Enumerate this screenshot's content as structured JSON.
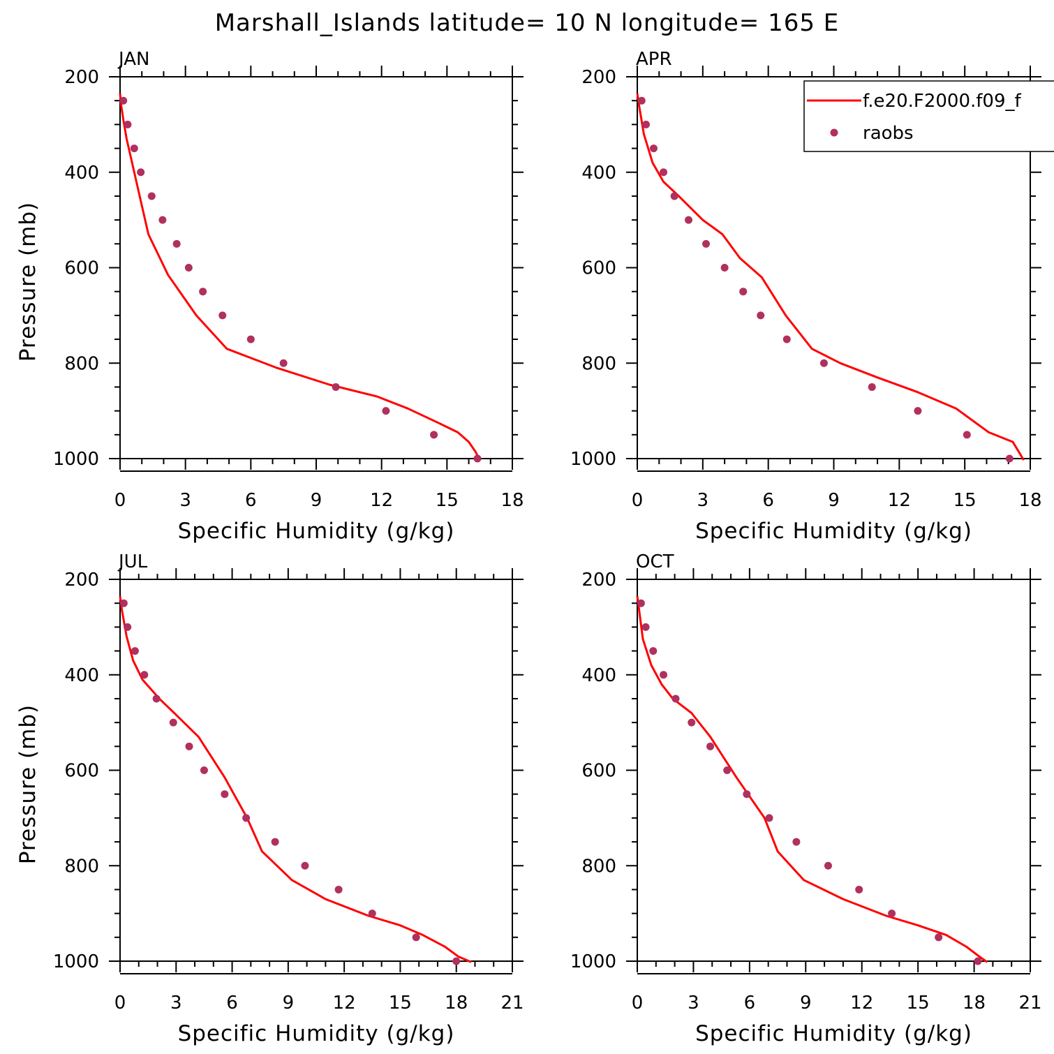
{
  "title": "Marshall_Islands  latitude= 10 N longitude= 165 E",
  "colors": {
    "model": "#ff0000",
    "obs": "#b03060"
  },
  "legend": {
    "model_label": "f.e20.F2000.f09_f",
    "obs_label": "raobs"
  },
  "chart_data": [
    {
      "type": "line",
      "panel": "JAN",
      "xlabel": "Specific Humidity (g/kg)",
      "ylabel": "Pressure (mb)",
      "xlim": [
        0,
        18
      ],
      "ylim": [
        200,
        1000
      ],
      "y_inverted": true,
      "xticks": [
        0,
        3,
        6,
        9,
        12,
        15,
        18
      ],
      "yticks": [
        200,
        400,
        600,
        800,
        1000
      ],
      "series": [
        {
          "name": "f.e20.F2000.f09_f",
          "style": "line",
          "x": [
            0,
            0.05,
            0.15,
            0.3,
            0.55,
            0.9,
            1.3,
            2.2,
            3.5,
            4.9,
            7.2,
            9.6,
            11.8,
            13.2,
            14.6,
            15.5,
            16.0,
            16.3,
            16.5
          ],
          "y": [
            235,
            260,
            290,
            330,
            380,
            450,
            530,
            615,
            700,
            770,
            810,
            845,
            870,
            895,
            925,
            945,
            965,
            985,
            1002
          ]
        },
        {
          "name": "raobs",
          "style": "scatter",
          "x": [
            0.15,
            0.35,
            0.65,
            0.95,
            1.45,
            1.95,
            2.6,
            3.15,
            3.8,
            4.7,
            6.0,
            7.5,
            9.9,
            12.2,
            14.4,
            16.4
          ],
          "y": [
            250,
            300,
            350,
            400,
            450,
            500,
            550,
            600,
            650,
            700,
            750,
            800,
            850,
            900,
            950,
            1000
          ]
        }
      ]
    },
    {
      "type": "line",
      "panel": "APR",
      "xlabel": "Specific Humidity (g/kg)",
      "ylabel": "",
      "xlim": [
        0,
        18
      ],
      "ylim": [
        200,
        1000
      ],
      "y_inverted": true,
      "xticks": [
        0,
        3,
        6,
        9,
        12,
        15,
        18
      ],
      "yticks": [
        200,
        400,
        600,
        800,
        1000
      ],
      "series": [
        {
          "name": "f.e20.F2000.f09_f",
          "style": "line",
          "x": [
            0,
            0.1,
            0.3,
            0.7,
            1.2,
            1.9,
            3.0,
            3.9,
            4.7,
            5.7,
            6.8,
            8.0,
            9.3,
            11.0,
            12.8,
            14.6,
            16.1,
            17.2,
            17.7
          ],
          "y": [
            235,
            265,
            320,
            380,
            420,
            450,
            500,
            530,
            580,
            620,
            700,
            770,
            800,
            830,
            860,
            895,
            945,
            965,
            1003
          ]
        },
        {
          "name": "raobs",
          "style": "scatter",
          "x": [
            0.2,
            0.4,
            0.75,
            1.2,
            1.7,
            2.35,
            3.15,
            4.0,
            4.85,
            5.65,
            6.85,
            8.55,
            10.75,
            12.85,
            15.1,
            17.05
          ],
          "y": [
            250,
            300,
            350,
            400,
            450,
            500,
            550,
            600,
            650,
            700,
            750,
            800,
            850,
            900,
            950,
            1000
          ]
        }
      ]
    },
    {
      "type": "line",
      "panel": "JUL",
      "xlabel": "Specific Humidity (g/kg)",
      "ylabel": "Pressure (mb)",
      "xlim": [
        0,
        21
      ],
      "ylim": [
        200,
        1000
      ],
      "y_inverted": true,
      "xticks": [
        0,
        3,
        6,
        9,
        12,
        15,
        18,
        21
      ],
      "yticks": [
        200,
        400,
        600,
        800,
        1000
      ],
      "series": [
        {
          "name": "f.e20.F2000.f09_f",
          "style": "line",
          "x": [
            0,
            0.1,
            0.35,
            0.7,
            1.2,
            2.1,
            2.9,
            4.2,
            5.6,
            6.8,
            7.6,
            9.2,
            11.0,
            13.3,
            15.0,
            16.2,
            17.4,
            18.1,
            18.8
          ],
          "y": [
            235,
            265,
            320,
            370,
            410,
            450,
            480,
            530,
            615,
            700,
            770,
            830,
            870,
            905,
            925,
            945,
            970,
            990,
            1002
          ]
        },
        {
          "name": "raobs",
          "style": "scatter",
          "x": [
            0.2,
            0.4,
            0.8,
            1.3,
            1.95,
            2.85,
            3.7,
            4.5,
            5.6,
            6.75,
            8.3,
            9.9,
            11.7,
            13.5,
            15.85,
            18.0
          ],
          "y": [
            250,
            300,
            350,
            400,
            450,
            500,
            550,
            600,
            650,
            700,
            750,
            800,
            850,
            900,
            950,
            1000
          ]
        }
      ]
    },
    {
      "type": "line",
      "panel": "OCT",
      "xlabel": "Specific Humidity (g/kg)",
      "ylabel": "",
      "xlim": [
        0,
        21
      ],
      "ylim": [
        200,
        1000
      ],
      "y_inverted": true,
      "xticks": [
        0,
        3,
        6,
        9,
        12,
        15,
        18,
        21
      ],
      "yticks": [
        200,
        400,
        600,
        800,
        1000
      ],
      "series": [
        {
          "name": "f.e20.F2000.f09_f",
          "style": "line",
          "x": [
            0,
            0.1,
            0.3,
            0.75,
            1.3,
            1.9,
            2.9,
            3.9,
            5.3,
            6.8,
            7.5,
            8.9,
            11.0,
            13.3,
            15.0,
            16.5,
            17.6,
            18.2,
            18.7
          ],
          "y": [
            235,
            265,
            325,
            380,
            420,
            450,
            480,
            530,
            615,
            700,
            770,
            830,
            870,
            905,
            925,
            945,
            970,
            988,
            1002
          ]
        },
        {
          "name": "raobs",
          "style": "scatter",
          "x": [
            0.2,
            0.45,
            0.85,
            1.4,
            2.05,
            2.9,
            3.9,
            4.8,
            5.85,
            7.05,
            8.5,
            10.2,
            11.85,
            13.6,
            16.1,
            18.2
          ],
          "y": [
            250,
            300,
            350,
            400,
            450,
            500,
            550,
            600,
            650,
            700,
            750,
            800,
            850,
            900,
            950,
            1000
          ]
        }
      ]
    }
  ]
}
